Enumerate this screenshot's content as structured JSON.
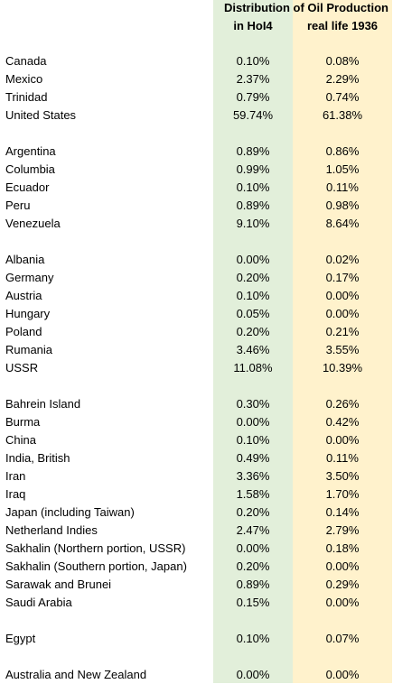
{
  "header": {
    "title": "Distribution of Oil Production",
    "col_hoi": "in HoI4",
    "col_real": "real life 1936"
  },
  "groups": [
    [
      {
        "country": "Canada",
        "hoi": "0.10%",
        "real": "0.08%"
      },
      {
        "country": "Mexico",
        "hoi": "2.37%",
        "real": "2.29%"
      },
      {
        "country": "Trinidad",
        "hoi": "0.79%",
        "real": "0.74%"
      },
      {
        "country": "United States",
        "hoi": "59.74%",
        "real": "61.38%"
      }
    ],
    [
      {
        "country": "Argentina",
        "hoi": "0.89%",
        "real": "0.86%"
      },
      {
        "country": "Columbia",
        "hoi": "0.99%",
        "real": "1.05%"
      },
      {
        "country": "Ecuador",
        "hoi": "0.10%",
        "real": "0.11%"
      },
      {
        "country": "Peru",
        "hoi": "0.89%",
        "real": "0.98%"
      },
      {
        "country": "Venezuela",
        "hoi": "9.10%",
        "real": "8.64%"
      }
    ],
    [
      {
        "country": "Albania",
        "hoi": "0.00%",
        "real": "0.02%"
      },
      {
        "country": "Germany",
        "hoi": "0.20%",
        "real": "0.17%"
      },
      {
        "country": "Austria",
        "hoi": "0.10%",
        "real": "0.00%"
      },
      {
        "country": "Hungary",
        "hoi": "0.05%",
        "real": "0.00%"
      },
      {
        "country": "Poland",
        "hoi": "0.20%",
        "real": "0.21%"
      },
      {
        "country": "Rumania",
        "hoi": "3.46%",
        "real": "3.55%"
      },
      {
        "country": "USSR",
        "hoi": "11.08%",
        "real": "10.39%"
      }
    ],
    [
      {
        "country": "Bahrein Island",
        "hoi": "0.30%",
        "real": "0.26%"
      },
      {
        "country": "Burma",
        "hoi": "0.00%",
        "real": "0.42%"
      },
      {
        "country": "China",
        "hoi": "0.10%",
        "real": "0.00%"
      },
      {
        "country": "India, British",
        "hoi": "0.49%",
        "real": "0.11%"
      },
      {
        "country": "Iran",
        "hoi": "3.36%",
        "real": "3.50%"
      },
      {
        "country": "Iraq",
        "hoi": "1.58%",
        "real": "1.70%"
      },
      {
        "country": "Japan (including Taiwan)",
        "hoi": "0.20%",
        "real": "0.14%"
      },
      {
        "country": "Netherland Indies",
        "hoi": "2.47%",
        "real": "2.79%"
      },
      {
        "country": "Sakhalin (Northern portion, USSR)",
        "hoi": "0.00%",
        "real": "0.18%"
      },
      {
        "country": "Sakhalin (Southern portion, Japan)",
        "hoi": "0.20%",
        "real": "0.00%"
      },
      {
        "country": "Sarawak and Brunei",
        "hoi": "0.89%",
        "real": "0.29%"
      },
      {
        "country": "Saudi Arabia",
        "hoi": "0.15%",
        "real": "0.00%"
      }
    ],
    [
      {
        "country": "Egypt",
        "hoi": "0.10%",
        "real": "0.07%"
      }
    ],
    [
      {
        "country": "Australia and New Zealand",
        "hoi": "0.00%",
        "real": "0.00%"
      }
    ]
  ],
  "colors": {
    "hoi_column_bg": "#e2efda",
    "real_column_bg": "#fff2cc"
  }
}
